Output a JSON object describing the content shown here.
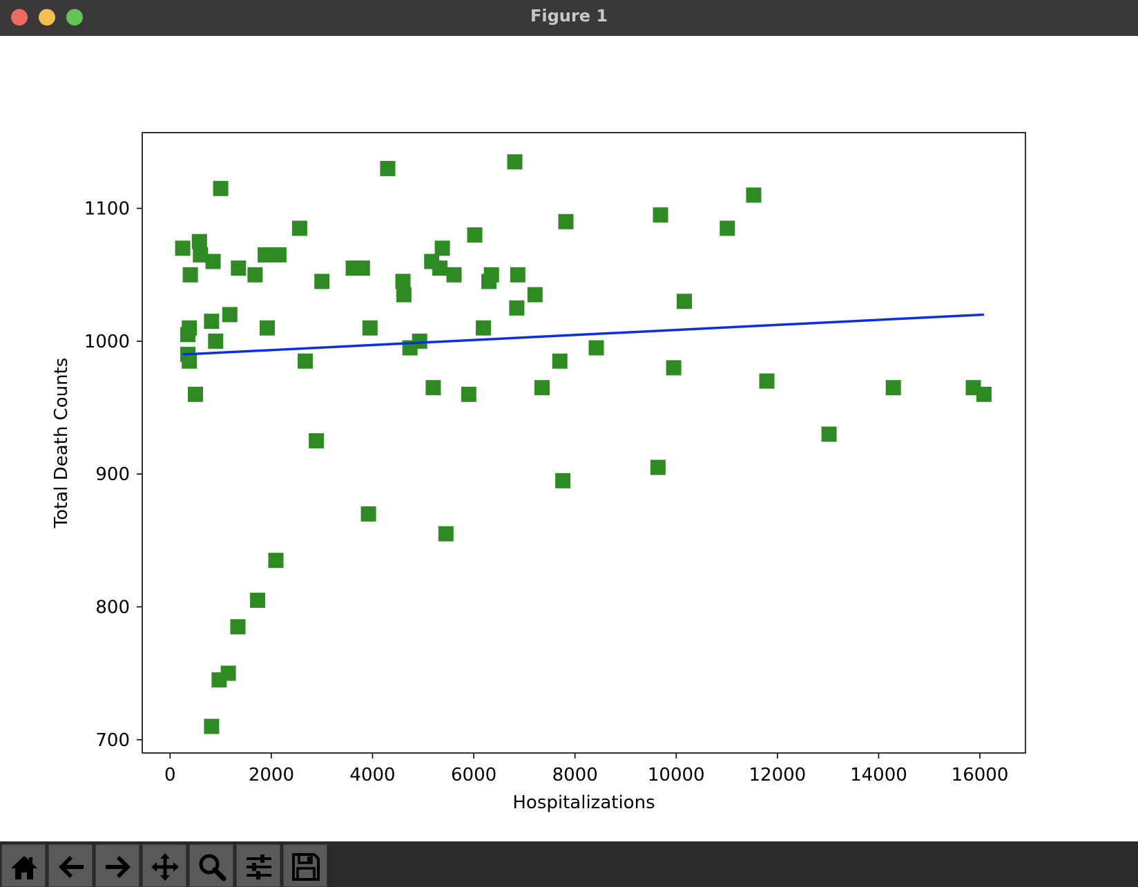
{
  "window": {
    "title": "Figure 1"
  },
  "toolbar": {
    "buttons": [
      {
        "name": "home-icon"
      },
      {
        "name": "back-arrow-icon"
      },
      {
        "name": "forward-arrow-icon"
      },
      {
        "name": "pan-icon"
      },
      {
        "name": "zoom-icon"
      },
      {
        "name": "configure-subplots-icon"
      },
      {
        "name": "save-icon"
      }
    ]
  },
  "colors": {
    "marker": "#2e8b22",
    "line": "#0a2ee8"
  },
  "chart_data": {
    "type": "scatter",
    "title": "",
    "xlabel": "Hospitalizations",
    "ylabel": "Total Death Counts",
    "xlim": [
      -550,
      16900
    ],
    "ylim": [
      690,
      1157
    ],
    "xticks": [
      0,
      2000,
      4000,
      6000,
      8000,
      10000,
      12000,
      14000,
      16000
    ],
    "yticks": [
      700,
      800,
      900,
      1000,
      1100
    ],
    "xtick_labels": [
      "0",
      "2000",
      "4000",
      "6000",
      "8000",
      "10000",
      "12000",
      "14000",
      "16000"
    ],
    "ytick_labels": [
      "700",
      "800",
      "900",
      "1000",
      "1100"
    ],
    "grid": false,
    "series": [
      {
        "name": "data",
        "marker": "square",
        "points": [
          [
            250,
            1070
          ],
          [
            350,
            990
          ],
          [
            350,
            1005
          ],
          [
            380,
            1010
          ],
          [
            380,
            985
          ],
          [
            400,
            1050
          ],
          [
            500,
            960
          ],
          [
            580,
            1075
          ],
          [
            600,
            1065
          ],
          [
            820,
            1015
          ],
          [
            850,
            1060
          ],
          [
            900,
            1000
          ],
          [
            1000,
            1115
          ],
          [
            1180,
            1020
          ],
          [
            1350,
            1055
          ],
          [
            1680,
            1050
          ],
          [
            1880,
            1065
          ],
          [
            1920,
            1010
          ],
          [
            2150,
            1065
          ],
          [
            2560,
            1085
          ],
          [
            2670,
            985
          ],
          [
            3000,
            1045
          ],
          [
            3620,
            1055
          ],
          [
            3800,
            1055
          ],
          [
            3950,
            1010
          ],
          [
            4300,
            1130
          ],
          [
            4600,
            1045
          ],
          [
            4620,
            1035
          ],
          [
            4740,
            995
          ],
          [
            4930,
            1000
          ],
          [
            5170,
            1060
          ],
          [
            5330,
            1055
          ],
          [
            5380,
            1070
          ],
          [
            5610,
            1050
          ],
          [
            6020,
            1080
          ],
          [
            6190,
            1010
          ],
          [
            6300,
            1045
          ],
          [
            6350,
            1050
          ],
          [
            6810,
            1135
          ],
          [
            6850,
            1025
          ],
          [
            6870,
            1050
          ],
          [
            7210,
            1035
          ],
          [
            7820,
            1090
          ],
          [
            8420,
            995
          ],
          [
            9690,
            1095
          ],
          [
            10160,
            1030
          ],
          [
            11010,
            1085
          ],
          [
            11530,
            1110
          ],
          [
            7700,
            985
          ],
          [
            9950,
            980
          ],
          [
            11790,
            970
          ],
          [
            5200,
            965
          ],
          [
            5900,
            960
          ],
          [
            7350,
            965
          ],
          [
            13020,
            930
          ],
          [
            14290,
            965
          ],
          [
            15870,
            965
          ],
          [
            16080,
            960
          ],
          [
            2890,
            925
          ],
          [
            9640,
            905
          ],
          [
            7760,
            895
          ],
          [
            3920,
            870
          ],
          [
            5450,
            855
          ],
          [
            2090,
            835
          ],
          [
            1730,
            805
          ],
          [
            1340,
            785
          ],
          [
            1150,
            750
          ],
          [
            970,
            745
          ],
          [
            820,
            710
          ]
        ]
      },
      {
        "name": "fit",
        "type": "line",
        "x": [
          250,
          16080
        ],
        "y": [
          990,
          1020
        ]
      }
    ]
  }
}
